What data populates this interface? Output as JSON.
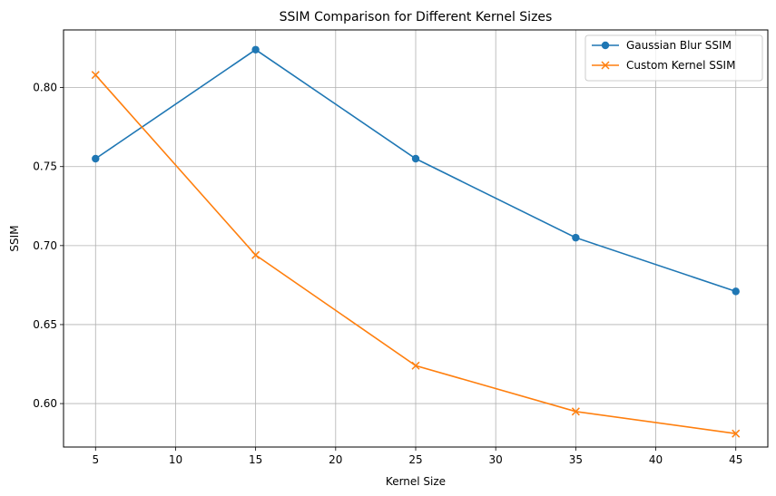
{
  "chart_data": {
    "type": "line",
    "title": "SSIM Comparison for Different Kernel Sizes",
    "xlabel": "Kernel Size",
    "ylabel": "SSIM",
    "x": [
      5,
      15,
      25,
      35,
      45
    ],
    "xlim": [
      3,
      47
    ],
    "ylim": [
      0.5725,
      0.8365
    ],
    "xticks": [
      "5",
      "10",
      "15",
      "20",
      "25",
      "30",
      "35",
      "40",
      "45"
    ],
    "xtick_values": [
      5,
      10,
      15,
      20,
      25,
      30,
      35,
      40,
      45
    ],
    "yticks": [
      "0.60",
      "0.65",
      "0.70",
      "0.75",
      "0.80"
    ],
    "ytick_values": [
      0.6,
      0.65,
      0.7,
      0.75,
      0.8
    ],
    "grid": true,
    "legend_position": "top-right",
    "series": [
      {
        "name": "Gaussian Blur SSIM",
        "values": [
          0.755,
          0.824,
          0.755,
          0.705,
          0.671
        ],
        "color": "#1f77b4",
        "marker": "circle"
      },
      {
        "name": "Custom Kernel SSIM",
        "values": [
          0.808,
          0.694,
          0.624,
          0.595,
          0.581
        ],
        "color": "#ff7f0e",
        "marker": "x"
      }
    ]
  }
}
